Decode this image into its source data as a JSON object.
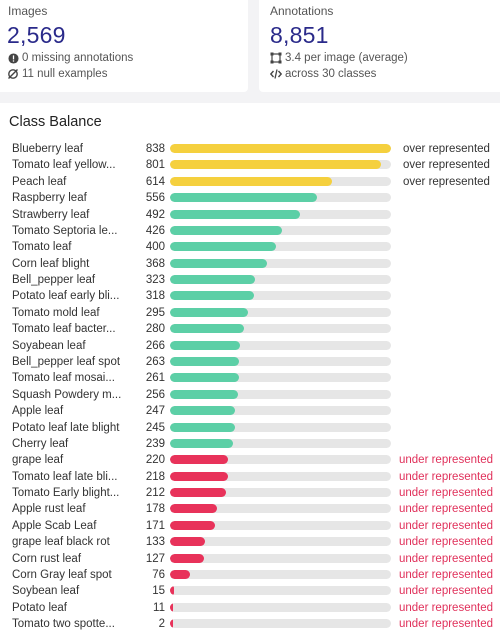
{
  "images_card": {
    "title": "Images",
    "value": "2,569",
    "line1": "0 missing annotations",
    "line1_icon": "alert-circle-icon",
    "line2": "11 null examples",
    "line2_icon": "null-set-icon"
  },
  "annotations_card": {
    "title": "Annotations",
    "value": "8,851",
    "line1": "3.4 per image (average)",
    "line1_icon": "bounding-box-icon",
    "line2": "across 30 classes",
    "line2_icon": "code-icon"
  },
  "class_balance": {
    "title": "Class Balance",
    "max_value": 838,
    "colors": {
      "over": "#f5d03e",
      "normal": "#5ccfa6",
      "under": "#e8325a"
    },
    "classes": [
      {
        "name": "Blueberry leaf",
        "count": "838",
        "value": 838,
        "status": "over",
        "tag": "over represented"
      },
      {
        "name": "Tomato leaf yellow...",
        "count": "801",
        "value": 801,
        "status": "over",
        "tag": "over represented"
      },
      {
        "name": "Peach leaf",
        "count": "614",
        "value": 614,
        "status": "over",
        "tag": "over represented"
      },
      {
        "name": "Raspberry leaf",
        "count": "556",
        "value": 556,
        "status": "normal",
        "tag": ""
      },
      {
        "name": "Strawberry leaf",
        "count": "492",
        "value": 492,
        "status": "normal",
        "tag": ""
      },
      {
        "name": "Tomato Septoria le...",
        "count": "426",
        "value": 426,
        "status": "normal",
        "tag": ""
      },
      {
        "name": "Tomato leaf",
        "count": "400",
        "value": 400,
        "status": "normal",
        "tag": ""
      },
      {
        "name": "Corn leaf blight",
        "count": "368",
        "value": 368,
        "status": "normal",
        "tag": ""
      },
      {
        "name": "Bell_pepper leaf",
        "count": "323",
        "value": 323,
        "status": "normal",
        "tag": ""
      },
      {
        "name": "Potato leaf early bli...",
        "count": "318",
        "value": 318,
        "status": "normal",
        "tag": ""
      },
      {
        "name": "Tomato mold leaf",
        "count": "295",
        "value": 295,
        "status": "normal",
        "tag": ""
      },
      {
        "name": "Tomato leaf bacter...",
        "count": "280",
        "value": 280,
        "status": "normal",
        "tag": ""
      },
      {
        "name": "Soyabean leaf",
        "count": "266",
        "value": 266,
        "status": "normal",
        "tag": ""
      },
      {
        "name": "Bell_pepper leaf spot",
        "count": "263",
        "value": 263,
        "status": "normal",
        "tag": ""
      },
      {
        "name": "Tomato leaf mosai...",
        "count": "261",
        "value": 261,
        "status": "normal",
        "tag": ""
      },
      {
        "name": "Squash Powdery m...",
        "count": "256",
        "value": 256,
        "status": "normal",
        "tag": ""
      },
      {
        "name": "Apple leaf",
        "count": "247",
        "value": 247,
        "status": "normal",
        "tag": ""
      },
      {
        "name": "Potato leaf late blight",
        "count": "245",
        "value": 245,
        "status": "normal",
        "tag": ""
      },
      {
        "name": "Cherry leaf",
        "count": "239",
        "value": 239,
        "status": "normal",
        "tag": ""
      },
      {
        "name": "grape leaf",
        "count": "220",
        "value": 220,
        "status": "under",
        "tag": "under represented"
      },
      {
        "name": "Tomato leaf late bli...",
        "count": "218",
        "value": 218,
        "status": "under",
        "tag": "under represented"
      },
      {
        "name": "Tomato Early blight...",
        "count": "212",
        "value": 212,
        "status": "under",
        "tag": "under represented"
      },
      {
        "name": "Apple rust leaf",
        "count": "178",
        "value": 178,
        "status": "under",
        "tag": "under represented"
      },
      {
        "name": "Apple Scab Leaf",
        "count": "171",
        "value": 171,
        "status": "under",
        "tag": "under represented"
      },
      {
        "name": "grape leaf black rot",
        "count": "133",
        "value": 133,
        "status": "under",
        "tag": "under represented"
      },
      {
        "name": "Corn rust leaf",
        "count": "127",
        "value": 127,
        "status": "under",
        "tag": "under represented"
      },
      {
        "name": "Corn Gray leaf spot",
        "count": "76",
        "value": 76,
        "status": "under",
        "tag": "under represented"
      },
      {
        "name": "Soybean leaf",
        "count": "15",
        "value": 15,
        "status": "under",
        "tag": "under represented"
      },
      {
        "name": "Potato leaf",
        "count": "11",
        "value": 11,
        "status": "under",
        "tag": "under represented"
      },
      {
        "name": "Tomato two spotte...",
        "count": "2",
        "value": 2,
        "status": "under",
        "tag": "under represented"
      }
    ]
  }
}
